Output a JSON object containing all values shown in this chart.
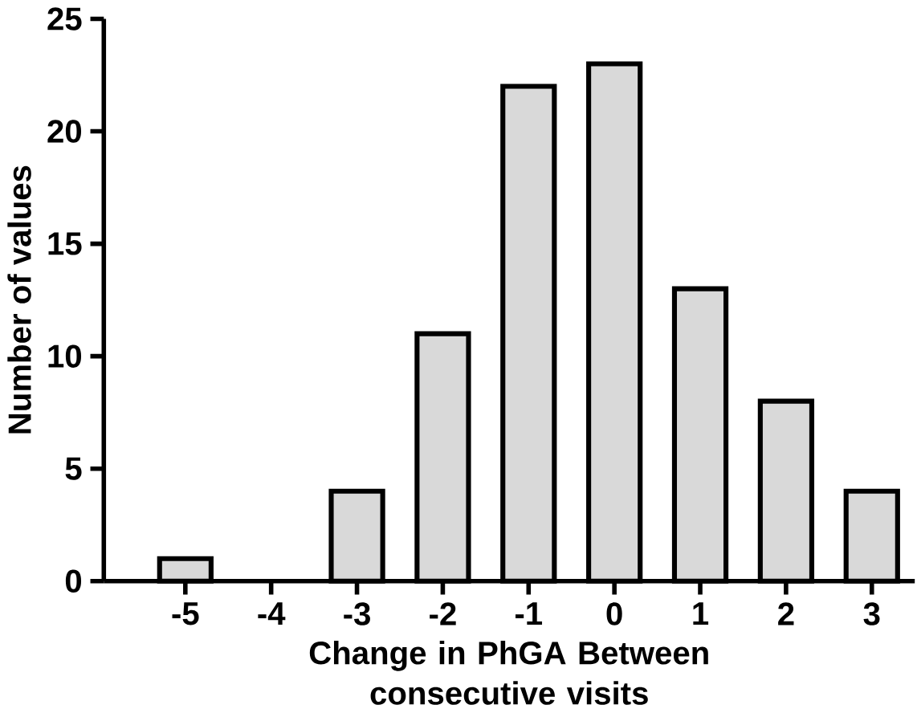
{
  "chart_data": {
    "type": "bar",
    "xlabel": "Change in  PhGA Between consecutive visits",
    "ylabel": "Number of values",
    "categories": [
      "-5",
      "-4",
      "-3",
      "-2",
      "-1",
      "0",
      "1",
      "2",
      "3"
    ],
    "values": [
      1,
      0,
      4,
      11,
      22,
      23,
      13,
      8,
      4
    ],
    "color": "#d9d9d9",
    "ylim": [
      0,
      25
    ],
    "yticks": [
      0,
      5,
      10,
      15,
      20,
      25
    ],
    "grid": false
  }
}
